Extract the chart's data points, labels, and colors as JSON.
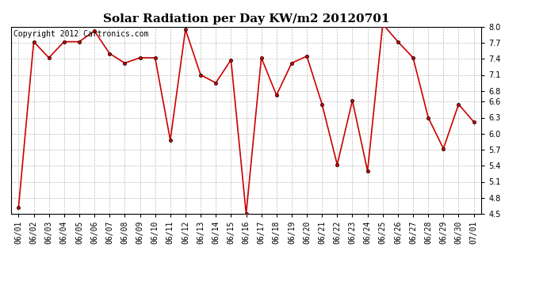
{
  "title": "Solar Radiation per Day KW/m2 20120701",
  "copyright": "Copyright 2012 Cartronics.com",
  "dates": [
    "06/01",
    "06/02",
    "06/03",
    "06/04",
    "06/05",
    "06/06",
    "06/07",
    "06/08",
    "06/09",
    "06/10",
    "06/11",
    "06/12",
    "06/13",
    "06/14",
    "06/15",
    "06/16",
    "06/17",
    "06/18",
    "06/19",
    "06/20",
    "06/21",
    "06/22",
    "06/23",
    "06/24",
    "06/25",
    "06/26",
    "06/27",
    "06/28",
    "06/29",
    "06/30",
    "07/01"
  ],
  "values": [
    4.62,
    7.72,
    7.42,
    7.72,
    7.72,
    7.92,
    7.5,
    7.32,
    7.42,
    7.42,
    5.88,
    7.95,
    7.1,
    6.95,
    7.38,
    4.5,
    7.42,
    6.72,
    7.32,
    7.45,
    6.55,
    5.42,
    6.62,
    5.3,
    8.05,
    7.72,
    7.42,
    6.3,
    5.72,
    6.55,
    6.22
  ],
  "line_color": "#cc0000",
  "marker": "o",
  "marker_size": 3,
  "ylim": [
    4.5,
    8.0
  ],
  "yticks": [
    4.5,
    4.8,
    5.1,
    5.4,
    5.7,
    6.0,
    6.3,
    6.6,
    6.8,
    7.1,
    7.4,
    7.7,
    8.0
  ],
  "bg_color": "#ffffff",
  "grid_color": "#bbbbbb",
  "title_fontsize": 11,
  "tick_fontsize": 7,
  "copyright_fontsize": 7
}
